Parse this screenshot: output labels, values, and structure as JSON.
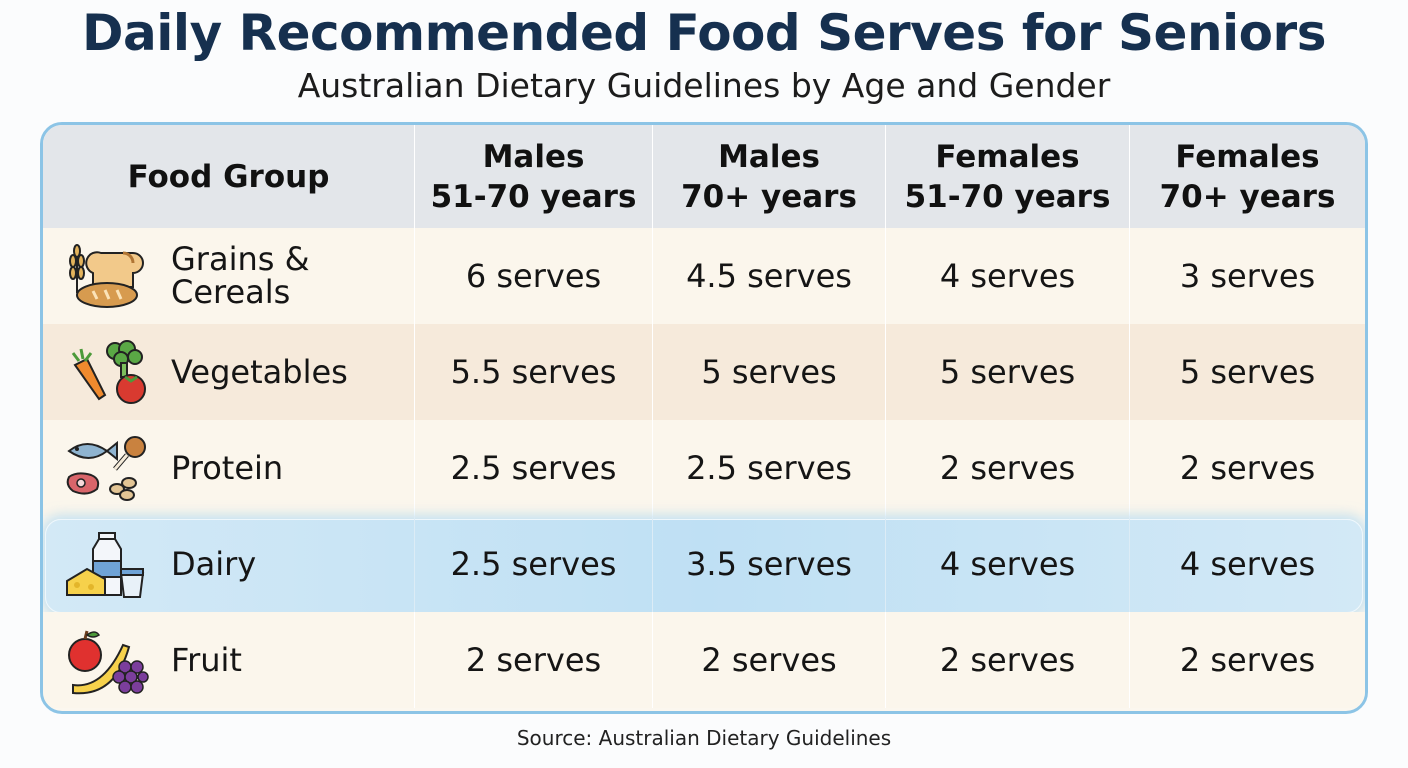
{
  "title": "Daily Recommended Food Serves for Seniors",
  "subtitle": "Australian Dietary Guidelines by Age and Gender",
  "table": {
    "header": {
      "food_group": "Food Group",
      "columns": [
        {
          "line1": "Males",
          "line2": "51-70 years"
        },
        {
          "line1": "Males",
          "line2": "70+ years"
        },
        {
          "line1": "Females",
          "line2": "51-70 years"
        },
        {
          "line1": "Females",
          "line2": "70+ years"
        }
      ]
    },
    "rows": [
      {
        "group_line1": "Grains &",
        "group_line2": "Cereals",
        "icon": "grains-bread-icon",
        "values": [
          "6 serves",
          "4.5 serves",
          "4 serves",
          "3 serves"
        ]
      },
      {
        "group_line1": "Vegetables",
        "group_line2": "",
        "icon": "vegetables-icon",
        "values": [
          "5.5 serves",
          "5 serves",
          "5 serves",
          "5 serves"
        ]
      },
      {
        "group_line1": "Protein",
        "group_line2": "",
        "icon": "protein-icon",
        "values": [
          "2.5 serves",
          "2.5 serves",
          "2 serves",
          "2 serves"
        ]
      },
      {
        "group_line1": "Dairy",
        "group_line2": "",
        "icon": "dairy-icon",
        "highlighted": true,
        "values": [
          "2.5 serves",
          "3.5 serves",
          "4 serves",
          "4 serves"
        ]
      },
      {
        "group_line1": "Fruit",
        "group_line2": "",
        "icon": "fruit-icon",
        "values": [
          "2 serves",
          "2 serves",
          "2 serves",
          "2 serves"
        ]
      }
    ]
  },
  "source": "Source: Australian Dietary Guidelines",
  "colors": {
    "title": "#16304f",
    "border": "#8cc4e6",
    "header_bg": "#e3e6ea",
    "highlight": "#bfe0f4"
  }
}
